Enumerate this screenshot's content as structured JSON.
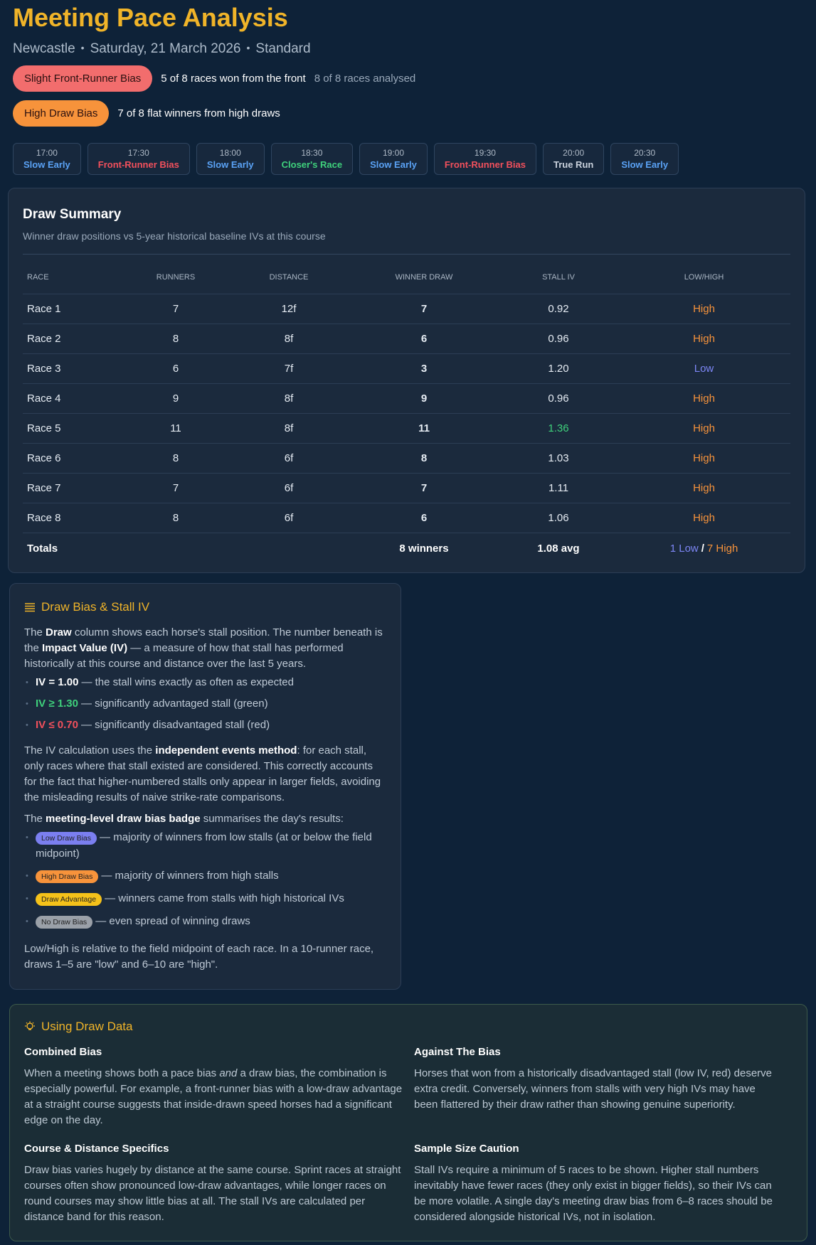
{
  "header": {
    "title": "Meeting Pace Analysis",
    "meta": [
      "Newcastle",
      "Saturday, 21 March 2026",
      "Standard"
    ],
    "badges": [
      {
        "label": "Slight Front-Runner Bias",
        "color": "#f26d6d",
        "text": "5 of 8 races won from the front",
        "note": "8 of 8 races analysed"
      },
      {
        "label": "High Draw Bias",
        "color": "#f7933b",
        "text": "7 of 8 flat winners from high draws"
      }
    ],
    "races": [
      {
        "time": "17:00",
        "label": "Slow Early",
        "color": "#5aa2f5"
      },
      {
        "time": "17:30",
        "label": "Front-Runner Bias",
        "color": "#f2505c"
      },
      {
        "time": "18:00",
        "label": "Slow Early",
        "color": "#5aa2f5"
      },
      {
        "time": "18:30",
        "label": "Closer's Race",
        "color": "#3fd17c"
      },
      {
        "time": "19:00",
        "label": "Slow Early",
        "color": "#5aa2f5"
      },
      {
        "time": "19:30",
        "label": "Front-Runner Bias",
        "color": "#f2505c"
      },
      {
        "time": "20:00",
        "label": "True Run",
        "color": "#c9d1dc"
      },
      {
        "time": "20:30",
        "label": "Slow Early",
        "color": "#5aa2f5"
      }
    ]
  },
  "draw_summary": {
    "title": "Draw Summary",
    "subtitle": "Winner draw positions vs 5-year historical baseline IVs at this course",
    "columns": [
      "RACE",
      "RUNNERS",
      "DISTANCE",
      "WINNER DRAW",
      "STALL IV",
      "LOW/HIGH"
    ],
    "rows": [
      {
        "race": "Race 1",
        "runners": "7",
        "distance": "12f",
        "winner_draw": "7",
        "stall_iv": "0.92",
        "low_high": "High",
        "side_color": "#f7933b"
      },
      {
        "race": "Race 2",
        "runners": "8",
        "distance": "8f",
        "winner_draw": "6",
        "stall_iv": "0.96",
        "low_high": "High",
        "side_color": "#f7933b"
      },
      {
        "race": "Race 3",
        "runners": "6",
        "distance": "7f",
        "winner_draw": "3",
        "stall_iv": "1.20",
        "low_high": "Low",
        "side_color": "#7d86f5"
      },
      {
        "race": "Race 4",
        "runners": "9",
        "distance": "8f",
        "winner_draw": "9",
        "stall_iv": "0.96",
        "low_high": "High",
        "side_color": "#f7933b"
      },
      {
        "race": "Race 5",
        "runners": "11",
        "distance": "8f",
        "winner_draw": "11",
        "stall_iv": "1.36",
        "iv_color": "#3fd17c",
        "low_high": "High",
        "side_color": "#f7933b"
      },
      {
        "race": "Race 6",
        "runners": "8",
        "distance": "6f",
        "winner_draw": "8",
        "stall_iv": "1.03",
        "low_high": "High",
        "side_color": "#f7933b"
      },
      {
        "race": "Race 7",
        "runners": "7",
        "distance": "6f",
        "winner_draw": "7",
        "stall_iv": "1.11",
        "low_high": "High",
        "side_color": "#f7933b"
      },
      {
        "race": "Race 8",
        "runners": "8",
        "distance": "6f",
        "winner_draw": "6",
        "stall_iv": "1.06",
        "low_high": "High",
        "side_color": "#f7933b"
      }
    ],
    "totals": {
      "label": "Totals",
      "winner_draw": "8 winners",
      "stall_iv": "1.08 avg",
      "low": "1 Low",
      "separator": "/",
      "high": "7 High"
    }
  },
  "explainer": {
    "title": "Draw Bias & Stall IV",
    "intro": [
      "The ",
      "Draw",
      " column shows each horse's stall position. The number beneath is the ",
      "Impact Value (IV)",
      " — a measure of how that stall has performed historically at this course and distance over the last 5 years."
    ],
    "iv_scale": [
      {
        "term": "IV = 1.00",
        "text": "— the stall wins exactly as often as expected",
        "color": "#ffffff"
      },
      {
        "term": "IV ≥ 1.30",
        "text": "— significantly advantaged stall (green)",
        "color": "#3fd17c"
      },
      {
        "term": "IV ≤ 0.70",
        "text": "— significantly disadvantaged stall (red)",
        "color": "#f2505c"
      }
    ],
    "method": [
      "The IV calculation uses the ",
      "independent events method",
      ": for each stall, only races where that stall existed are considered. This correctly accounts for the fact that higher-numbered stalls only appear in larger fields, avoiding the misleading results of naive strike-rate comparisons."
    ],
    "badge_intro": [
      "The ",
      "meeting-level draw bias badge",
      " summarises the day's results:"
    ],
    "badge_legend": [
      {
        "badge": "Low Draw Bias",
        "color": "#7b7ff0",
        "text": "— majority of winners from low stalls (at or below the field midpoint)"
      },
      {
        "badge": "High Draw Bias",
        "color": "#f7933b",
        "text": "— majority of winners from high stalls"
      },
      {
        "badge": "Draw Advantage",
        "color": "#f5c21a",
        "text": "— winners came from stalls with high historical IVs"
      },
      {
        "badge": "No Draw Bias",
        "color": "#9aa0a8",
        "text": "— even spread of winning draws"
      }
    ],
    "note": "Low/High is relative to the field midpoint of each race. In a 10-runner race, draws 1–5 are \"low\" and 6–10 are \"high\"."
  },
  "using": {
    "title": "Using Draw Data",
    "blocks": [
      {
        "heading": "Combined Bias",
        "parts": [
          "When a meeting shows both a pace bias ",
          "and",
          " a draw bias, the combination is especially powerful. For example, a front-runner bias with a low-draw advantage at a straight course suggests that inside-drawn speed horses had a significant edge on the day."
        ]
      },
      {
        "heading": "Against The Bias",
        "parts": [
          "Horses that won from a historically disadvantaged stall (low IV, red) deserve extra credit. Conversely, winners from stalls with very high IVs may have been flattered by their draw rather than showing genuine superiority."
        ]
      },
      {
        "heading": "Course & Distance Specifics",
        "parts": [
          "Draw bias varies hugely by distance at the same course. Sprint races at straight courses often show pronounced low-draw advantages, while longer races on round courses may show little bias at all. The stall IVs are calculated per distance band for this reason."
        ]
      },
      {
        "heading": "Sample Size Caution",
        "parts": [
          "Stall IVs require a minimum of 5 races to be shown. Higher stall numbers inevitably have fewer races (they only exist in bigger fields), so their IVs can be more volatile. A single day's meeting draw bias from 6–8 races should be considered alongside historical IVs, not in isolation."
        ]
      }
    ]
  }
}
